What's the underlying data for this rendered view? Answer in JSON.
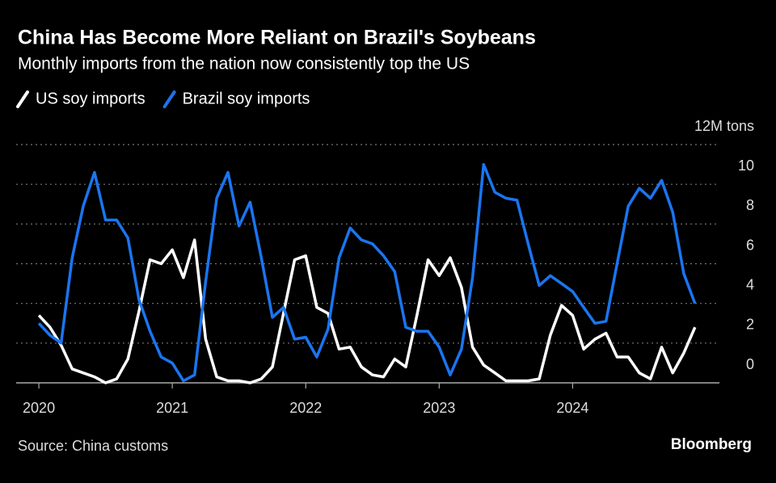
{
  "chart_data": {
    "type": "line",
    "title": "China Has Become More Reliant on Brazil's Soybeans",
    "subtitle": "Monthly imports from the nation now consistently top the US",
    "source": "Source: China customs",
    "brand": "Bloomberg",
    "x": [
      2020,
      2020.083,
      2020.167,
      2020.25,
      2020.333,
      2020.417,
      2020.5,
      2020.583,
      2020.667,
      2020.75,
      2020.833,
      2020.917,
      2021,
      2021.083,
      2021.167,
      2021.25,
      2021.333,
      2021.417,
      2021.5,
      2021.583,
      2021.667,
      2021.75,
      2021.833,
      2021.917,
      2022,
      2022.083,
      2022.167,
      2022.25,
      2022.333,
      2022.417,
      2022.5,
      2022.583,
      2022.667,
      2022.75,
      2022.833,
      2022.917,
      2023,
      2023.083,
      2023.167,
      2023.25,
      2023.333,
      2023.417,
      2023.5,
      2023.583,
      2023.667,
      2023.75,
      2023.833,
      2023.917,
      2024,
      2024.083,
      2024.167,
      2024.25,
      2024.333,
      2024.417,
      2024.5,
      2024.583,
      2024.667,
      2024.75,
      2024.833,
      2024.917
    ],
    "series": [
      {
        "name": "US soy imports",
        "color": "#ffffff",
        "values": [
          3.4,
          2.8,
          1.9,
          0.7,
          0.5,
          0.3,
          0.0,
          0.2,
          1.2,
          3.6,
          6.2,
          6.0,
          6.7,
          5.3,
          7.2,
          2.2,
          0.3,
          0.1,
          0.1,
          0.0,
          0.2,
          0.8,
          3.5,
          6.2,
          6.4,
          3.8,
          3.5,
          1.7,
          1.8,
          0.8,
          0.4,
          0.3,
          1.2,
          0.8,
          3.4,
          6.2,
          5.4,
          6.3,
          4.8,
          1.8,
          0.9,
          0.5,
          0.1,
          0.1,
          0.1,
          0.2,
          2.4,
          3.9,
          3.4,
          1.7,
          2.2,
          2.5,
          1.3,
          1.3,
          0.5,
          0.2,
          1.8,
          0.5,
          1.5,
          2.8
        ]
      },
      {
        "name": "Brazil soy imports",
        "color": "#1a75f0",
        "values": [
          3.0,
          2.4,
          2.0,
          6.3,
          8.9,
          10.6,
          8.2,
          8.2,
          7.3,
          4.2,
          2.6,
          1.3,
          1.0,
          0.1,
          0.4,
          5.1,
          9.3,
          10.6,
          7.9,
          9.1,
          6.3,
          3.3,
          3.8,
          2.2,
          2.3,
          1.3,
          2.7,
          6.3,
          7.8,
          7.2,
          7.0,
          6.4,
          5.6,
          2.8,
          2.6,
          2.6,
          1.8,
          0.4,
          1.7,
          5.3,
          11.0,
          9.6,
          9.3,
          9.2,
          7.0,
          4.9,
          5.4,
          5.0,
          4.6,
          3.8,
          3.0,
          3.1,
          6.0,
          8.9,
          9.8,
          9.3,
          10.2,
          8.6,
          5.5,
          4.0
        ]
      }
    ],
    "xlim": [
      2019.83,
      2025.1
    ],
    "xticks": [
      2020,
      2021,
      2022,
      2023,
      2024
    ],
    "ylim": [
      0,
      12
    ],
    "yticks": [
      0,
      2,
      4,
      6,
      8,
      10,
      {
        "value": 12,
        "label": "12M tons"
      }
    ],
    "grid": true
  }
}
